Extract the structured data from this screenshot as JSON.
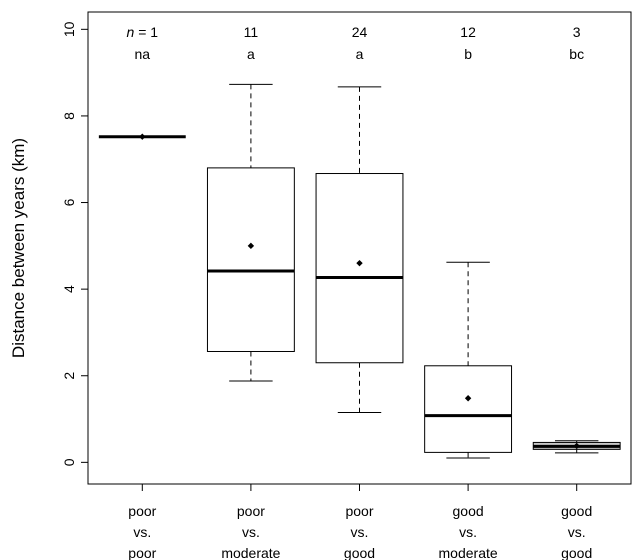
{
  "chart_data": {
    "type": "box",
    "ylabel": "Distance between years (km)",
    "ylim": [
      -0.5,
      10.4
    ],
    "yticks": [
      0,
      2,
      4,
      6,
      8,
      10
    ],
    "grid": false,
    "categories": [
      {
        "lines": [
          "poor",
          "vs.",
          "poor"
        ]
      },
      {
        "lines": [
          "poor",
          "vs.",
          "moderate"
        ]
      },
      {
        "lines": [
          "poor",
          "vs.",
          "good"
        ]
      },
      {
        "lines": [
          "good",
          "vs.",
          "moderate"
        ]
      },
      {
        "lines": [
          "good",
          "vs.",
          "good"
        ]
      }
    ],
    "n_prefix": "n",
    "n_eq": " = ",
    "n_values": [
      "1",
      "11",
      "24",
      "12",
      "3"
    ],
    "group_letters": [
      "na",
      "a",
      "a",
      "b",
      "bc"
    ],
    "boxes": [
      {
        "whisker_low": 7.52,
        "q1": 7.52,
        "median": 7.52,
        "q3": 7.52,
        "whisker_high": 7.52,
        "mean": 7.52
      },
      {
        "whisker_low": 1.88,
        "q1": 2.56,
        "median": 4.42,
        "q3": 6.8,
        "whisker_high": 8.73,
        "mean": 5.0
      },
      {
        "whisker_low": 1.15,
        "q1": 2.3,
        "median": 4.27,
        "q3": 6.67,
        "whisker_high": 8.67,
        "mean": 4.6
      },
      {
        "whisker_low": 0.1,
        "q1": 0.23,
        "median": 1.08,
        "q3": 2.23,
        "whisker_high": 4.62,
        "mean": 1.48
      },
      {
        "whisker_low": 0.22,
        "q1": 0.3,
        "median": 0.37,
        "q3": 0.46,
        "whisker_high": 0.5,
        "mean": 0.38
      }
    ],
    "colors": {
      "box_fill": "#ffffff",
      "small_box_fill": "#c8c8c8",
      "line": "#000000"
    }
  }
}
